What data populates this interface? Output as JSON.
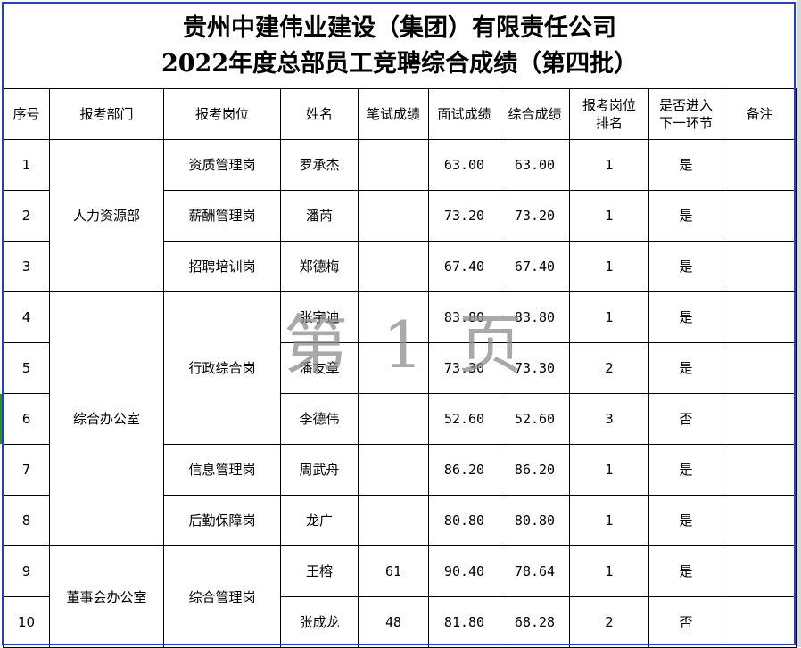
{
  "title": {
    "line1": "贵州中建伟业建设（集团）有限责任公司",
    "line2": "2022年度总部员工竞聘综合成绩（第四批）"
  },
  "headers": [
    "序号",
    "报考部门",
    "报考岗位",
    "姓名",
    "笔试成绩",
    "面试成绩",
    "综合成绩",
    "报考岗位排名",
    "是否进入下一环节",
    "备注"
  ],
  "rows": [
    {
      "no": "1",
      "dept": "人力资源部",
      "position": "资质管理岗",
      "name": "罗承杰",
      "written": "",
      "interview": "63.00",
      "total": "63.00",
      "rank": "1",
      "advance": "是",
      "remark": ""
    },
    {
      "no": "2",
      "dept": null,
      "position": "薪酬管理岗",
      "name": "潘芮",
      "written": "",
      "interview": "73.20",
      "total": "73.20",
      "rank": "1",
      "advance": "是",
      "remark": ""
    },
    {
      "no": "3",
      "dept": null,
      "position": "招聘培训岗",
      "name": "郑德梅",
      "written": "",
      "interview": "67.40",
      "total": "67.40",
      "rank": "1",
      "advance": "是",
      "remark": ""
    },
    {
      "no": "4",
      "dept": "综合办公室",
      "position": "行政综合岗",
      "name": "张宇迪",
      "written": "",
      "interview": "83.80",
      "total": "83.80",
      "rank": "1",
      "advance": "是",
      "remark": ""
    },
    {
      "no": "5",
      "dept": null,
      "position": null,
      "name": "潘友章",
      "written": "",
      "interview": "73.30",
      "total": "73.30",
      "rank": "2",
      "advance": "是",
      "remark": ""
    },
    {
      "no": "6",
      "dept": null,
      "position": null,
      "name": "李德伟",
      "written": "",
      "interview": "52.60",
      "total": "52.60",
      "rank": "3",
      "advance": "否",
      "remark": ""
    },
    {
      "no": "7",
      "dept": null,
      "position": "信息管理岗",
      "name": "周武舟",
      "written": "",
      "interview": "86.20",
      "total": "86.20",
      "rank": "1",
      "advance": "是",
      "remark": ""
    },
    {
      "no": "8",
      "dept": null,
      "position": "后勤保障岗",
      "name": "龙广",
      "written": "",
      "interview": "80.80",
      "total": "80.80",
      "rank": "1",
      "advance": "是",
      "remark": ""
    },
    {
      "no": "9",
      "dept": "董事会办公室",
      "position": "综合管理岗",
      "name": "王榕",
      "written": "61",
      "interview": "90.40",
      "total": "78.64",
      "rank": "1",
      "advance": "是",
      "remark": ""
    },
    {
      "no": "10",
      "dept": null,
      "position": null,
      "name": "张成龙",
      "written": "48",
      "interview": "81.80",
      "total": "68.28",
      "rank": "2",
      "advance": "否",
      "remark": ""
    }
  ],
  "watermark": "第 1 页",
  "colors": {
    "print_border": "#1f3fcf",
    "watermark": "#8c8c8c"
  }
}
